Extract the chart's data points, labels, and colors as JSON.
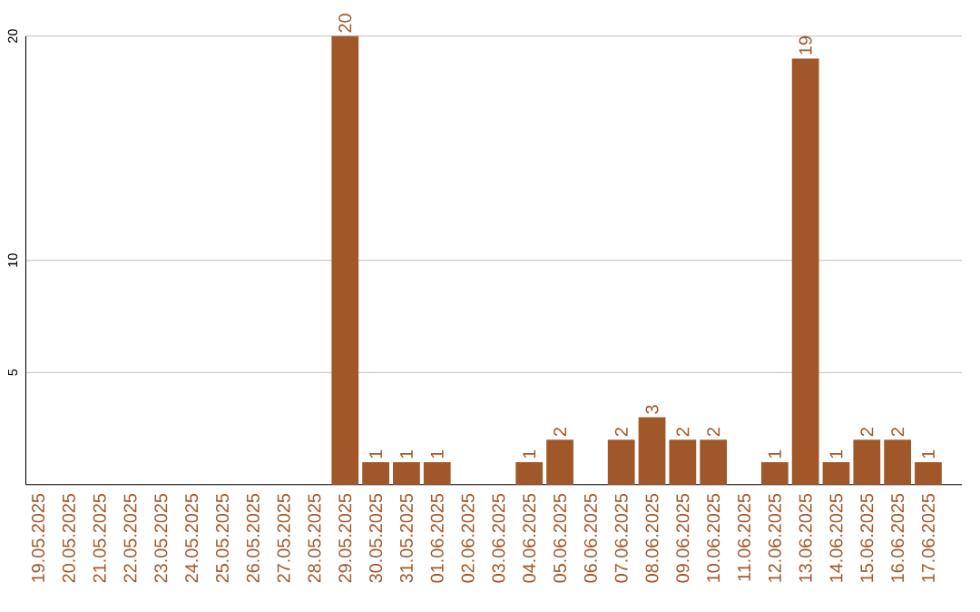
{
  "chart_data": {
    "type": "bar",
    "categories": [
      "19.05.2025",
      "20.05.2025",
      "21.05.2025",
      "22.05.2025",
      "23.05.2025",
      "24.05.2025",
      "25.05.2025",
      "26.05.2025",
      "27.05.2025",
      "28.05.2025",
      "29.05.2025",
      "30.05.2025",
      "31.05.2025",
      "01.06.2025",
      "02.06.2025",
      "03.06.2025",
      "04.06.2025",
      "05.06.2025",
      "06.06.2025",
      "07.06.2025",
      "08.06.2025",
      "09.06.2025",
      "10.06.2025",
      "11.06.2025",
      "12.06.2025",
      "13.06.2025",
      "14.06.2025",
      "15.06.2025",
      "16.06.2025",
      "17.06.2025"
    ],
    "values": [
      0,
      0,
      0,
      0,
      0,
      0,
      0,
      0,
      0,
      0,
      20,
      1,
      1,
      1,
      0,
      0,
      1,
      2,
      0,
      2,
      3,
      2,
      2,
      0,
      1,
      19,
      1,
      2,
      2,
      1
    ],
    "value_labels": [
      null,
      null,
      null,
      null,
      null,
      null,
      null,
      null,
      null,
      null,
      "20",
      "1",
      "1",
      "1",
      null,
      null,
      "1",
      "2",
      null,
      "2",
      "3",
      "2",
      "2",
      null,
      "1",
      "19",
      "1",
      "2",
      "2",
      "1"
    ],
    "color": "#a0582a",
    "ylim": [
      0,
      20
    ],
    "yticks": [
      5,
      10,
      20
    ],
    "grid": "y"
  }
}
